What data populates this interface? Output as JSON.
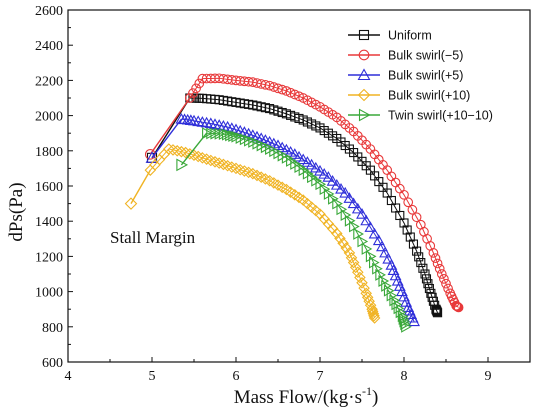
{
  "chart_data": {
    "type": "scatter",
    "xlabel": "Mass Flow/(kg·s",
    "xlabel_sup": "-1",
    "xlabel_close": ")",
    "ylabel": "dPs(Pa)",
    "xlim": [
      4,
      9.5
    ],
    "ylim": [
      600,
      2600
    ],
    "xticks": [
      4,
      5,
      6,
      7,
      8,
      9
    ],
    "yticks": [
      600,
      800,
      1000,
      1200,
      1400,
      1600,
      1800,
      2000,
      2200,
      2400,
      2600
    ],
    "grid": false,
    "legend_position": "top-right",
    "annotation": "Stall Margin",
    "series": [
      {
        "name": "Uniform",
        "color": "#111111",
        "marker": "square",
        "stall_point": [
          5.0,
          1760
        ],
        "points": [
          [
            5.45,
            2100
          ],
          [
            5.6,
            2098
          ],
          [
            5.8,
            2090
          ],
          [
            6.0,
            2075
          ],
          [
            6.2,
            2060
          ],
          [
            6.4,
            2040
          ],
          [
            6.6,
            2010
          ],
          [
            6.8,
            1975
          ],
          [
            7.0,
            1930
          ],
          [
            7.2,
            1870
          ],
          [
            7.4,
            1790
          ],
          [
            7.6,
            1690
          ],
          [
            7.8,
            1560
          ],
          [
            8.0,
            1390
          ],
          [
            8.15,
            1230
          ],
          [
            8.25,
            1100
          ],
          [
            8.32,
            990
          ],
          [
            8.38,
            900
          ],
          [
            8.4,
            880
          ]
        ]
      },
      {
        "name": "Bulk swirl(−5)",
        "color": "#e8393a",
        "marker": "circle",
        "stall_point": [
          4.98,
          1780
        ],
        "points": [
          [
            5.45,
            2100
          ],
          [
            5.6,
            2210
          ],
          [
            5.8,
            2212
          ],
          [
            6.0,
            2200
          ],
          [
            6.2,
            2190
          ],
          [
            6.4,
            2170
          ],
          [
            6.6,
            2140
          ],
          [
            6.8,
            2100
          ],
          [
            7.0,
            2050
          ],
          [
            7.2,
            1990
          ],
          [
            7.4,
            1910
          ],
          [
            7.6,
            1810
          ],
          [
            7.8,
            1690
          ],
          [
            8.0,
            1550
          ],
          [
            8.2,
            1380
          ],
          [
            8.35,
            1220
          ],
          [
            8.45,
            1100
          ],
          [
            8.55,
            990
          ],
          [
            8.62,
            920
          ],
          [
            8.65,
            910
          ]
        ]
      },
      {
        "name": "Bulk swirl(+5)",
        "color": "#2f2fd9",
        "marker": "triangle-up",
        "stall_point": [
          5.0,
          1760
        ],
        "points": [
          [
            5.35,
            1980
          ],
          [
            5.5,
            1970
          ],
          [
            5.7,
            1955
          ],
          [
            5.9,
            1935
          ],
          [
            6.1,
            1905
          ],
          [
            6.3,
            1870
          ],
          [
            6.5,
            1830
          ],
          [
            6.7,
            1780
          ],
          [
            6.9,
            1720
          ],
          [
            7.1,
            1650
          ],
          [
            7.3,
            1560
          ],
          [
            7.5,
            1440
          ],
          [
            7.7,
            1290
          ],
          [
            7.85,
            1150
          ],
          [
            7.95,
            1030
          ],
          [
            8.05,
            910
          ],
          [
            8.12,
            830
          ]
        ]
      },
      {
        "name": "Bulk swirl(+10)",
        "color": "#f0b323",
        "marker": "diamond",
        "stall_point": [
          4.75,
          1500
        ],
        "points": [
          [
            4.98,
            1690
          ],
          [
            5.2,
            1810
          ],
          [
            5.4,
            1790
          ],
          [
            5.6,
            1760
          ],
          [
            5.8,
            1730
          ],
          [
            6.0,
            1700
          ],
          [
            6.2,
            1670
          ],
          [
            6.4,
            1630
          ],
          [
            6.6,
            1580
          ],
          [
            6.8,
            1520
          ],
          [
            7.0,
            1440
          ],
          [
            7.2,
            1330
          ],
          [
            7.35,
            1220
          ],
          [
            7.45,
            1110
          ],
          [
            7.55,
            990
          ],
          [
            7.62,
            900
          ],
          [
            7.65,
            850
          ]
        ]
      },
      {
        "name": "Twin swirl(+10−10)",
        "color": "#3aa83a",
        "marker": "triangle-right",
        "stall_point": [
          5.35,
          1720
        ],
        "points": [
          [
            5.65,
            1900
          ],
          [
            5.85,
            1895
          ],
          [
            6.0,
            1880
          ],
          [
            6.2,
            1850
          ],
          [
            6.4,
            1810
          ],
          [
            6.6,
            1760
          ],
          [
            6.8,
            1690
          ],
          [
            7.0,
            1610
          ],
          [
            7.2,
            1500
          ],
          [
            7.4,
            1370
          ],
          [
            7.6,
            1200
          ],
          [
            7.75,
            1060
          ],
          [
            7.88,
            950
          ],
          [
            7.98,
            860
          ],
          [
            8.02,
            800
          ]
        ]
      }
    ]
  }
}
